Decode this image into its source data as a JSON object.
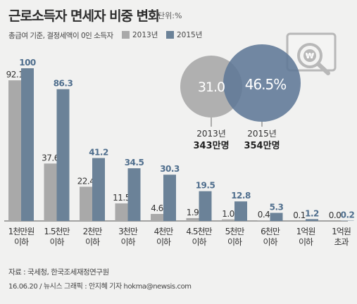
{
  "title": "근로소득자 면세자 비중 변화",
  "unit": "단위:%",
  "subtitle": "총급여 기준, 결정세액이 0인 소득자",
  "legend": {
    "y2013": "2013년",
    "y2015": "2015년"
  },
  "source": "자료 : 국세청, 한국조세재정연구원",
  "credit": "16.06.20 / 뉴시스 그래픽 : 안지혜 기자 hokma@newsis.com",
  "colors": {
    "y2013": "#a9a9a9",
    "y2015": "#6b8298",
    "label2013": "#333333",
    "label2015": "#4f6e8d"
  },
  "chart_data": [
    {
      "type": "bar",
      "categories": [
        [
          "1천만원",
          "이하"
        ],
        [
          "1.5천만",
          "이하"
        ],
        [
          "2천만",
          "이하"
        ],
        [
          "3천만",
          "이하"
        ],
        [
          "4천만",
          "이하"
        ],
        [
          "4.5천만",
          "이하"
        ],
        [
          "5천만",
          "이하"
        ],
        [
          "6천만",
          "이하"
        ],
        [
          "1억원",
          "이하"
        ],
        [
          "1억원",
          "초과"
        ]
      ],
      "series": [
        {
          "name": "2013년",
          "values": [
            92.1,
            37.6,
            22.4,
            11.5,
            4.6,
            1.9,
            1.0,
            0.4,
            0.1,
            0.0
          ],
          "labels": [
            "92.1",
            "37.6",
            "22.4",
            "11.5",
            "4.6",
            "1.9",
            "1.0",
            "0.4",
            "0.1",
            "0.0"
          ]
        },
        {
          "name": "2015년",
          "values": [
            100,
            86.3,
            41.2,
            34.5,
            30.3,
            19.5,
            12.8,
            5.3,
            1.2,
            0.2
          ],
          "labels": [
            "100",
            "86.3",
            "41.2",
            "34.5",
            "30.3",
            "19.5",
            "12.8",
            "5.3",
            "1.2",
            "0.2"
          ]
        }
      ],
      "ylim": [
        0,
        100
      ]
    },
    {
      "type": "venn",
      "circles": [
        {
          "year": "2013년",
          "value": 31.0,
          "label": "31.0",
          "count": "343만명"
        },
        {
          "year": "2015년",
          "value": 46.5,
          "label": "46.5%",
          "count": "354만명"
        }
      ]
    }
  ],
  "icon": "magnifier-won-icon"
}
